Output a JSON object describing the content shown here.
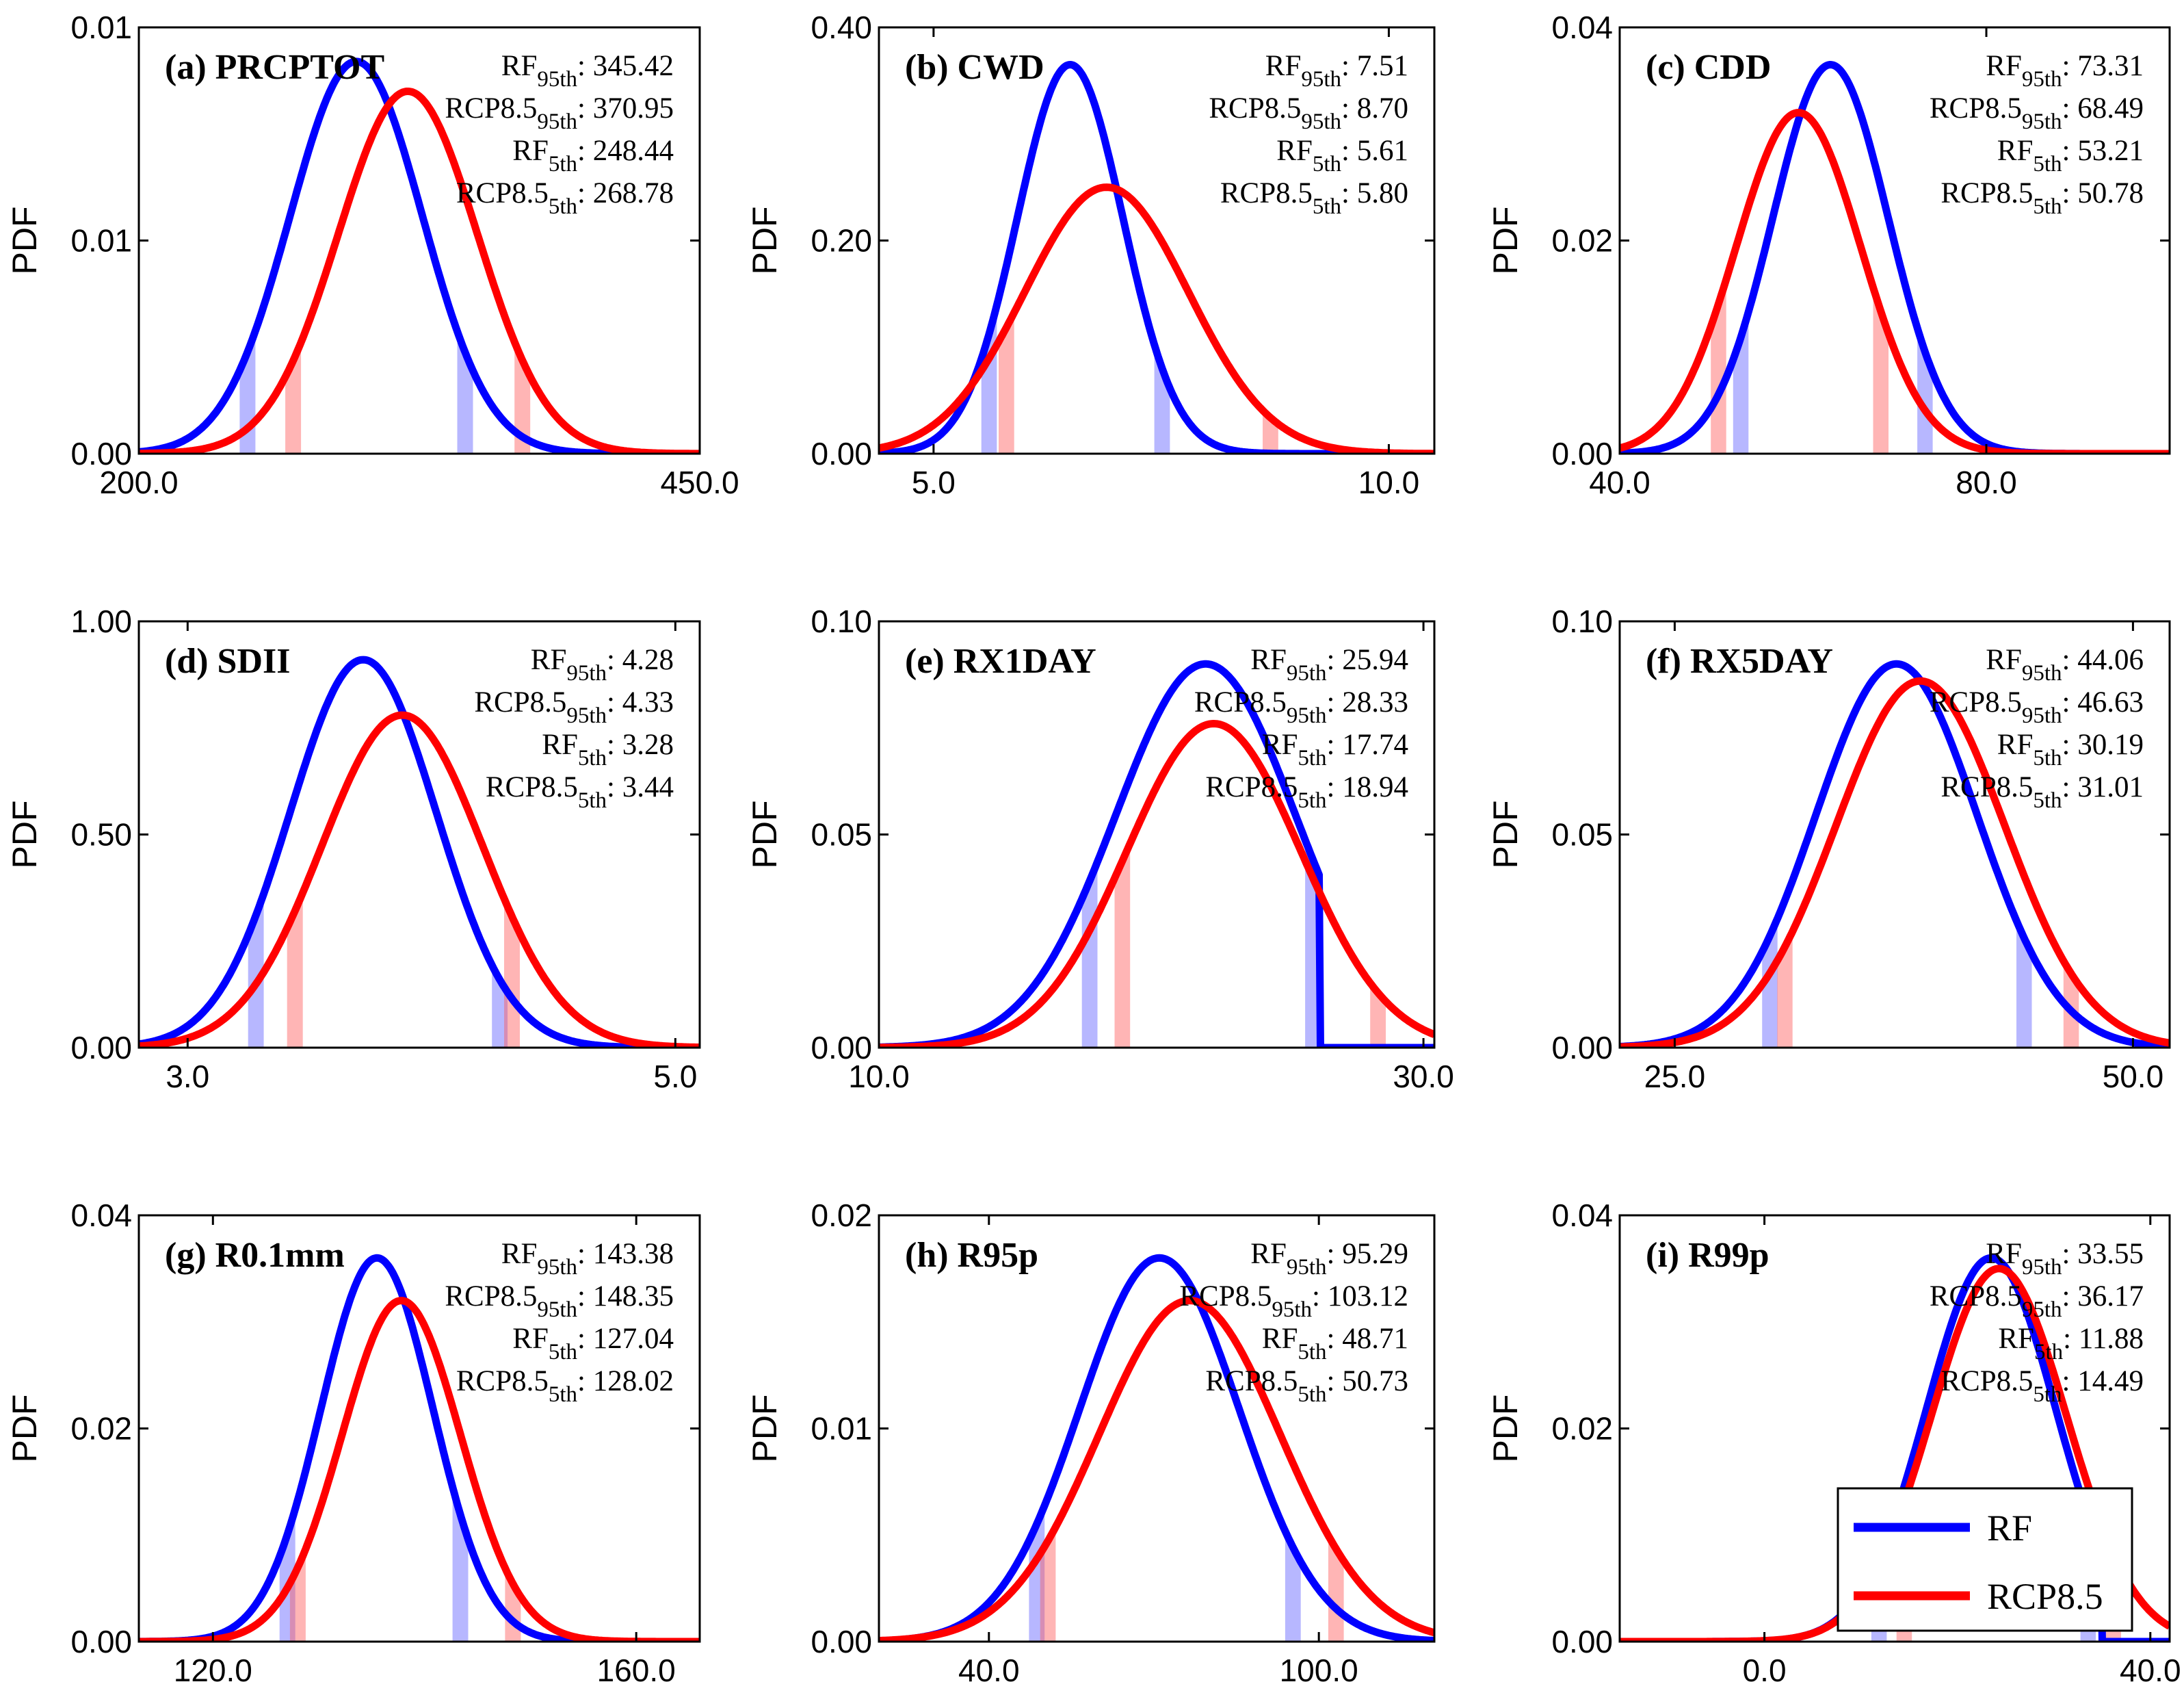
{
  "legend": {
    "position": "bottom-right",
    "entries": [
      {
        "label": "RF",
        "color": "#0000ff"
      },
      {
        "label": "RCP8.5",
        "color": "#ff0000"
      }
    ]
  },
  "chart_data": [
    {
      "type": "line",
      "title": "(a) PRCPTOT",
      "ylabel": "PDF",
      "xlabel": "",
      "xlim": [
        200,
        450
      ],
      "ylim": [
        0,
        0.01
      ],
      "xticks": [
        200,
        450
      ],
      "xtick_labels": [
        "200.0",
        "450.0"
      ],
      "yticks": [
        0,
        0.005,
        0.01
      ],
      "ytick_labels": [
        "0.00",
        "0.01",
        "0.01"
      ],
      "series": [
        {
          "name": "RF",
          "color": "#0000ff",
          "mean": 296.9,
          "sd": 29.5,
          "peak": 0.0092,
          "p5": 248.44,
          "p95": 345.42
        },
        {
          "name": "RCP8.5",
          "color": "#ff0000",
          "mean": 319.9,
          "sd": 31.0,
          "peak": 0.0085,
          "p5": 268.78,
          "p95": 370.95
        }
      ],
      "stats": [
        {
          "name": "RF",
          "sub": "95th",
          "value": "345.42"
        },
        {
          "name": "RCP8.5",
          "sub": "95th",
          "value": "370.95"
        },
        {
          "name": "RF",
          "sub": "5th",
          "value": "248.44"
        },
        {
          "name": "RCP8.5",
          "sub": "5th",
          "value": "268.78"
        }
      ]
    },
    {
      "type": "line",
      "title": "(b) CWD",
      "ylabel": "PDF",
      "xlabel": "",
      "xlim": [
        4.4,
        10.5
      ],
      "ylim": [
        0,
        0.4
      ],
      "xticks": [
        5,
        10
      ],
      "xtick_labels": [
        "5.0",
        "10.0"
      ],
      "yticks": [
        0,
        0.2,
        0.4
      ],
      "ytick_labels": [
        "0.00",
        "0.20",
        "0.40"
      ],
      "series": [
        {
          "name": "RF",
          "color": "#0000ff",
          "mean": 6.5,
          "sd": 0.58,
          "peak": 0.365,
          "p5": 5.61,
          "p95": 7.51
        },
        {
          "name": "RCP8.5",
          "color": "#ff0000",
          "mean": 6.9,
          "sd": 0.9,
          "peak": 0.25,
          "p5": 5.8,
          "p95": 8.7
        }
      ],
      "stats": [
        {
          "name": "RF",
          "sub": "95th",
          "value": "7.51"
        },
        {
          "name": "RCP8.5",
          "sub": "95th",
          "value": "8.70"
        },
        {
          "name": "RF",
          "sub": "5th",
          "value": "5.61"
        },
        {
          "name": "RCP8.5",
          "sub": "5th",
          "value": "5.80"
        }
      ]
    },
    {
      "type": "line",
      "title": "(c) CDD",
      "ylabel": "PDF",
      "xlabel": "",
      "xlim": [
        40,
        100
      ],
      "ylim": [
        0,
        0.04
      ],
      "xticks": [
        40,
        80
      ],
      "xtick_labels": [
        "40.0",
        "80.0"
      ],
      "yticks": [
        0,
        0.02,
        0.04
      ],
      "ytick_labels": [
        "0.00",
        "0.02",
        "0.04"
      ],
      "series": [
        {
          "name": "RF",
          "color": "#0000ff",
          "mean": 63.0,
          "sd": 6.3,
          "peak": 0.0365,
          "p5": 53.21,
          "p95": 73.31
        },
        {
          "name": "RCP8.5",
          "color": "#ff0000",
          "mean": 59.5,
          "sd": 6.8,
          "peak": 0.032,
          "p5": 50.78,
          "p95": 68.49
        }
      ],
      "stats": [
        {
          "name": "RF",
          "sub": "95th",
          "value": "73.31"
        },
        {
          "name": "RCP8.5",
          "sub": "95th",
          "value": "68.49"
        },
        {
          "name": "RF",
          "sub": "5th",
          "value": "53.21"
        },
        {
          "name": "RCP8.5",
          "sub": "5th",
          "value": "50.78"
        }
      ]
    },
    {
      "type": "line",
      "title": "(d) SDII",
      "ylabel": "PDF",
      "xlabel": "",
      "xlim": [
        2.8,
        5.1
      ],
      "ylim": [
        0,
        1.0
      ],
      "xticks": [
        3,
        5
      ],
      "xtick_labels": [
        "3.0",
        "5.0"
      ],
      "yticks": [
        0,
        0.5,
        1.0
      ],
      "ytick_labels": [
        "0.00",
        "0.50",
        "1.00"
      ],
      "series": [
        {
          "name": "RF",
          "color": "#0000ff",
          "mean": 3.72,
          "sd": 0.3,
          "peak": 0.91,
          "p5": 3.28,
          "p95": 4.28
        },
        {
          "name": "RCP8.5",
          "color": "#ff0000",
          "mean": 3.88,
          "sd": 0.33,
          "peak": 0.78,
          "p5": 3.44,
          "p95": 4.33
        }
      ],
      "stats": [
        {
          "name": "RF",
          "sub": "95th",
          "value": "4.28"
        },
        {
          "name": "RCP8.5",
          "sub": "95th",
          "value": "4.33"
        },
        {
          "name": "RF",
          "sub": "5th",
          "value": "3.28"
        },
        {
          "name": "RCP8.5",
          "sub": "5th",
          "value": "3.44"
        }
      ]
    },
    {
      "type": "line",
      "title": "(e) RX1DAY",
      "ylabel": "PDF",
      "xlabel": "",
      "xlim": [
        10,
        30.4
      ],
      "ylim": [
        0,
        0.1
      ],
      "xticks": [
        10,
        30
      ],
      "xtick_labels": [
        "10.0",
        "30.0"
      ],
      "yticks": [
        0,
        0.05,
        0.1
      ],
      "ytick_labels": [
        "0.00",
        "0.05",
        "0.10"
      ],
      "series": [
        {
          "name": "RF",
          "color": "#0000ff",
          "mean": 22.0,
          "sd": 3.3,
          "peak": 0.09,
          "p5": 17.74,
          "p95": 25.94,
          "cutoff": 26.2
        },
        {
          "name": "RCP8.5",
          "color": "#ff0000",
          "mean": 22.3,
          "sd": 3.2,
          "peak": 0.076,
          "p5": 18.94,
          "p95": 28.33
        }
      ],
      "stats": [
        {
          "name": "RF",
          "sub": "95th",
          "value": "25.94"
        },
        {
          "name": "RCP8.5",
          "sub": "95th",
          "value": "28.33"
        },
        {
          "name": "RF",
          "sub": "5th",
          "value": "17.74"
        },
        {
          "name": "RCP8.5",
          "sub": "5th",
          "value": "18.94"
        }
      ]
    },
    {
      "type": "line",
      "title": "(f) RX5DAY",
      "ylabel": "PDF",
      "xlabel": "",
      "xlim": [
        22,
        52
      ],
      "ylim": [
        0,
        0.1
      ],
      "xticks": [
        25,
        50
      ],
      "xtick_labels": [
        "25.0",
        "50.0"
      ],
      "yticks": [
        0,
        0.05,
        0.1
      ],
      "ytick_labels": [
        "0.00",
        "0.05",
        "0.10"
      ],
      "series": [
        {
          "name": "RF",
          "color": "#0000ff",
          "mean": 37.1,
          "sd": 4.4,
          "peak": 0.09,
          "p5": 30.19,
          "p95": 44.06
        },
        {
          "name": "RCP8.5",
          "color": "#ff0000",
          "mean": 38.4,
          "sd": 4.6,
          "peak": 0.086,
          "p5": 31.01,
          "p95": 46.63
        }
      ],
      "stats": [
        {
          "name": "RF",
          "sub": "95th",
          "value": "44.06"
        },
        {
          "name": "RCP8.5",
          "sub": "95th",
          "value": "46.63"
        },
        {
          "name": "RF",
          "sub": "5th",
          "value": "30.19"
        },
        {
          "name": "RCP8.5",
          "sub": "5th",
          "value": "31.01"
        }
      ]
    },
    {
      "type": "line",
      "title": "(g) R0.1mm",
      "ylabel": "PDF",
      "xlabel": "",
      "xlim": [
        113,
        166
      ],
      "ylim": [
        0,
        0.04
      ],
      "xticks": [
        120,
        160
      ],
      "xtick_labels": [
        "120.0",
        "160.0"
      ],
      "yticks": [
        0,
        0.02,
        0.04
      ],
      "ytick_labels": [
        "0.00",
        "0.02",
        "0.04"
      ],
      "series": [
        {
          "name": "RF",
          "color": "#0000ff",
          "mean": 135.5,
          "sd": 5.3,
          "peak": 0.036,
          "p5": 127.04,
          "p95": 143.38
        },
        {
          "name": "RCP8.5",
          "color": "#ff0000",
          "mean": 137.8,
          "sd": 5.6,
          "peak": 0.032,
          "p5": 128.02,
          "p95": 148.35
        }
      ],
      "stats": [
        {
          "name": "RF",
          "sub": "95th",
          "value": "143.38"
        },
        {
          "name": "RCP8.5",
          "sub": "95th",
          "value": "148.35"
        },
        {
          "name": "RF",
          "sub": "5th",
          "value": "127.04"
        },
        {
          "name": "RCP8.5",
          "sub": "5th",
          "value": "128.02"
        }
      ]
    },
    {
      "type": "line",
      "title": "(h) R95p",
      "ylabel": "PDF",
      "xlabel": "",
      "xlim": [
        20,
        121
      ],
      "ylim": [
        0,
        0.02
      ],
      "xticks": [
        40,
        100
      ],
      "xtick_labels": [
        "40.0",
        "100.0"
      ],
      "yticks": [
        0,
        0.01,
        0.02
      ],
      "ytick_labels": [
        "0.00",
        "0.01",
        "0.02"
      ],
      "series": [
        {
          "name": "RF",
          "color": "#0000ff",
          "mean": 71.0,
          "sd": 14.5,
          "peak": 0.018,
          "p5": 48.71,
          "p95": 95.29
        },
        {
          "name": "RCP8.5",
          "color": "#ff0000",
          "mean": 76.5,
          "sd": 16.5,
          "peak": 0.016,
          "p5": 50.73,
          "p95": 103.12
        }
      ],
      "stats": [
        {
          "name": "RF",
          "sub": "95th",
          "value": "95.29"
        },
        {
          "name": "RCP8.5",
          "sub": "95th",
          "value": "103.12"
        },
        {
          "name": "RF",
          "sub": "5th",
          "value": "48.71"
        },
        {
          "name": "RCP8.5",
          "sub": "5th",
          "value": "50.73"
        }
      ]
    },
    {
      "type": "line",
      "title": "(i) R99p",
      "ylabel": "PDF",
      "xlabel": "",
      "xlim": [
        -15,
        42
      ],
      "ylim": [
        0,
        0.04
      ],
      "xticks": [
        0,
        40
      ],
      "xtick_labels": [
        "0.0",
        "40.0"
      ],
      "yticks": [
        0,
        0.02,
        0.04
      ],
      "ytick_labels": [
        "0.00",
        "0.02",
        "0.04"
      ],
      "series": [
        {
          "name": "RF",
          "color": "#0000ff",
          "mean": 23.5,
          "sd": 6.7,
          "peak": 0.036,
          "p5": 11.88,
          "p95": 33.55,
          "cutoff": 35.0
        },
        {
          "name": "RCP8.5",
          "color": "#ff0000",
          "mean": 24.3,
          "sd": 7.0,
          "peak": 0.035,
          "p5": 14.49,
          "p95": 36.17
        }
      ],
      "stats": [
        {
          "name": "RF",
          "sub": "95th",
          "value": "33.55"
        },
        {
          "name": "RCP8.5",
          "sub": "95th",
          "value": "36.17"
        },
        {
          "name": "RF",
          "sub": "5th",
          "value": "11.88"
        },
        {
          "name": "RCP8.5",
          "sub": "5th",
          "value": "14.49"
        }
      ]
    }
  ]
}
